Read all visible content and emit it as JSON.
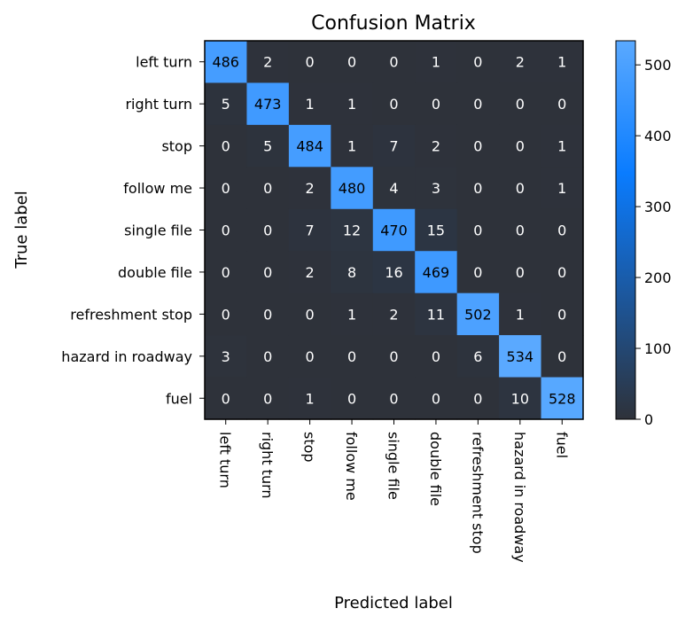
{
  "chart_data": {
    "type": "heatmap",
    "title": "Confusion Matrix",
    "xlabel": "Predicted label",
    "ylabel": "True label",
    "classes": [
      "left turn",
      "right turn",
      "stop",
      "follow me",
      "single file",
      "double file",
      "refreshment stop",
      "hazard in roadway",
      "fuel"
    ],
    "matrix": [
      [
        486,
        2,
        0,
        0,
        0,
        1,
        0,
        2,
        1
      ],
      [
        5,
        473,
        1,
        1,
        0,
        0,
        0,
        0,
        0
      ],
      [
        0,
        5,
        484,
        1,
        7,
        2,
        0,
        0,
        1
      ],
      [
        0,
        0,
        2,
        480,
        4,
        3,
        0,
        0,
        1
      ],
      [
        0,
        0,
        7,
        12,
        470,
        15,
        0,
        0,
        0
      ],
      [
        0,
        0,
        2,
        8,
        16,
        469,
        0,
        0,
        0
      ],
      [
        0,
        0,
        0,
        1,
        2,
        11,
        502,
        1,
        0
      ],
      [
        3,
        0,
        0,
        0,
        0,
        0,
        6,
        534,
        0
      ],
      [
        0,
        0,
        1,
        0,
        0,
        0,
        0,
        10,
        528
      ]
    ],
    "colorbar": {
      "range": [
        0,
        534
      ],
      "ticks": [
        0,
        100,
        200,
        300,
        400,
        500
      ],
      "colors": {
        "low": "#2e323a",
        "mid": "#0a7cff",
        "high": "#5aa9ff"
      }
    },
    "grid": false
  }
}
